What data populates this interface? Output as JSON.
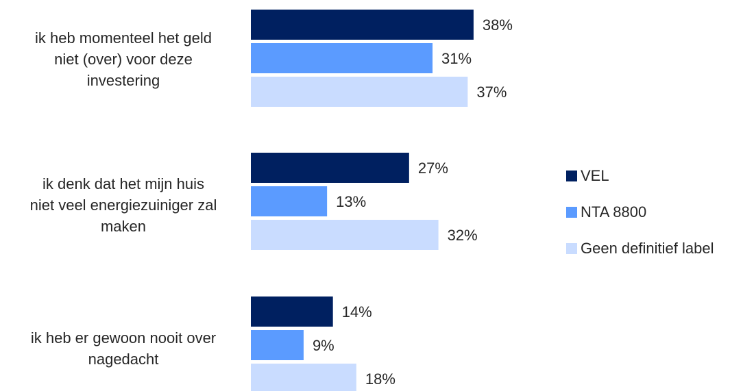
{
  "chart_data": {
    "type": "bar",
    "orientation": "horizontal",
    "categories": [
      [
        "ik heb momenteel het geld",
        "niet (over) voor deze",
        "investering"
      ],
      [
        "ik denk dat het mijn huis",
        "niet veel energiezuiniger zal",
        "maken"
      ],
      [
        "ik heb er gewoon nooit over",
        "nagedacht"
      ]
    ],
    "series": [
      {
        "name": "VEL",
        "color": "#002060",
        "values": [
          38,
          27,
          14
        ],
        "labels": [
          "38%",
          "27%",
          "14%"
        ]
      },
      {
        "name": "NTA 8800",
        "color": "#5b9bff",
        "values": [
          31,
          13,
          9
        ],
        "labels": [
          "31%",
          "13%",
          "9%"
        ]
      },
      {
        "name": "Geen definitief label",
        "color": "#c9dcff",
        "values": [
          37,
          32,
          18
        ],
        "labels": [
          "37%",
          "32%",
          "18%"
        ]
      }
    ],
    "value_unit": "%",
    "xlim": [
      0,
      50
    ],
    "grid": false,
    "legend_position": "right",
    "title": "",
    "xlabel": "",
    "ylabel": ""
  }
}
